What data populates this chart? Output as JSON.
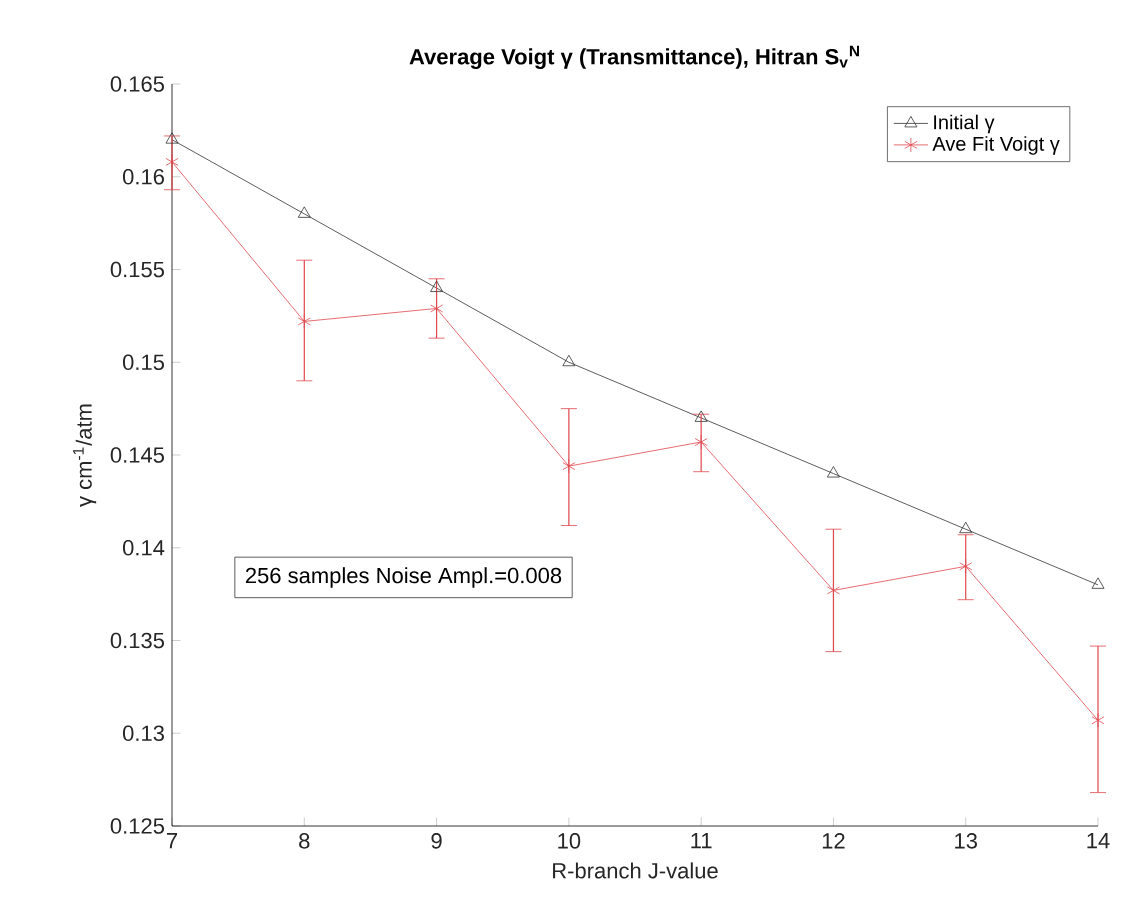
{
  "chart_data": {
    "type": "line",
    "title": "Average Voigt γ (Transmittance), Hitran S$_{v}$$^{N}$",
    "xlabel": "R-branch J-value",
    "ylabel": "γ cm$^{-1}$/atm",
    "x": [
      7,
      8,
      9,
      10,
      11,
      12,
      13,
      14
    ],
    "series": [
      {
        "name": "Initial γ",
        "color": "#333333",
        "marker": "triangle",
        "values": [
          0.162,
          0.158,
          0.154,
          0.15,
          0.147,
          0.144,
          0.141,
          0.138
        ]
      },
      {
        "name": "Ave Fit Voigt γ",
        "color": "#e0474c",
        "marker": "cross",
        "values": [
          0.1608,
          0.1522,
          0.1529,
          0.1444,
          0.1457,
          0.1377,
          0.139,
          0.1307
        ],
        "errors": [
          [
            0.1593,
            0.1622
          ],
          [
            0.149,
            0.1555
          ],
          [
            0.1513,
            0.1545
          ],
          [
            0.1412,
            0.1475
          ],
          [
            0.1441,
            0.1472
          ],
          [
            0.1344,
            0.141
          ],
          [
            0.1372,
            0.1407
          ],
          [
            0.1268,
            0.1347
          ]
        ]
      }
    ],
    "xlim": [
      7,
      14
    ],
    "xticks": [
      7,
      8,
      9,
      10,
      11,
      12,
      13,
      14
    ],
    "ylim": [
      0.125,
      0.165
    ],
    "yticks": [
      0.125,
      0.13,
      0.135,
      0.14,
      0.145,
      0.15,
      0.155,
      0.16,
      0.165
    ],
    "legend": "top right",
    "annotations": [
      "256 samples Noise Ampl.=0.008"
    ]
  }
}
